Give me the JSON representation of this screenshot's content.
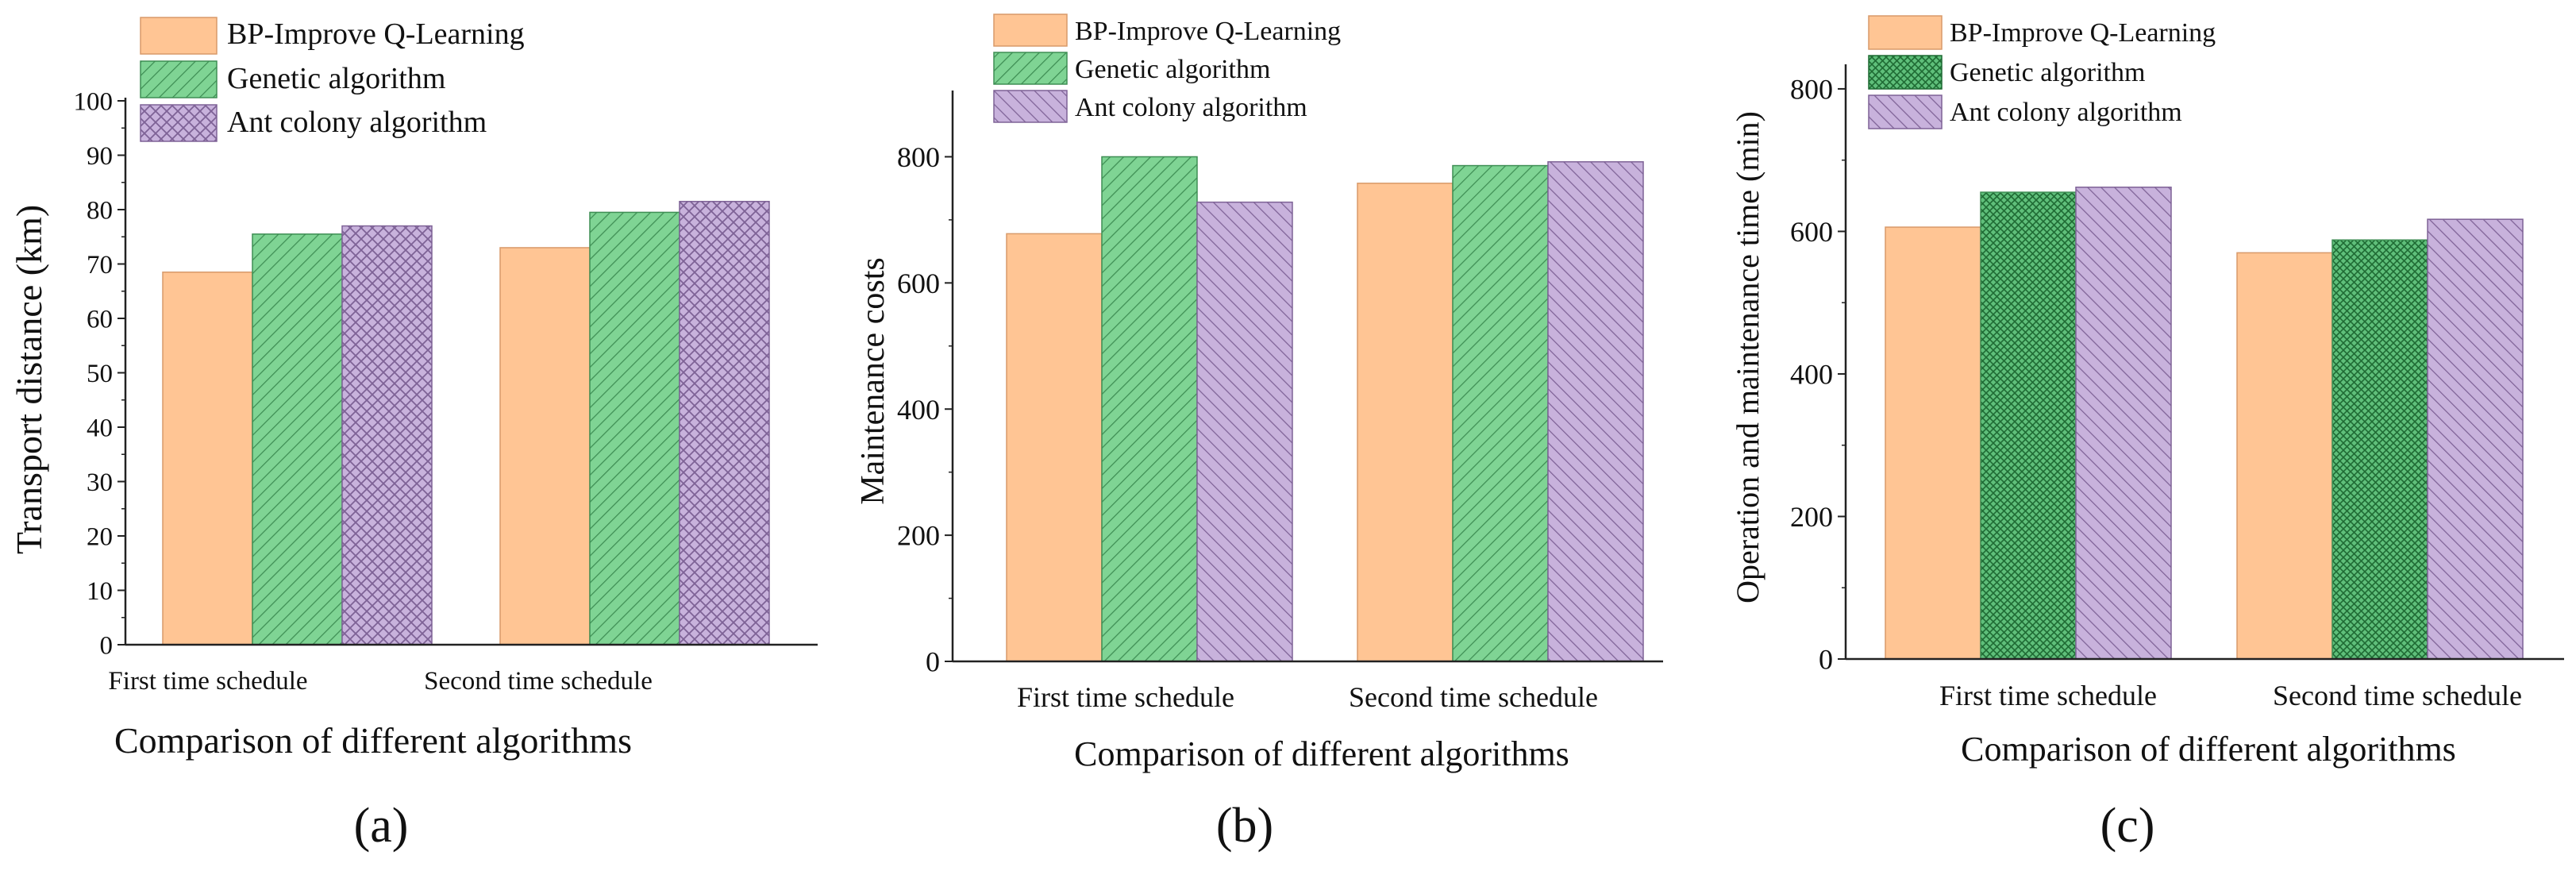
{
  "legend_labels": [
    "BP-Improve Q-Learning",
    "Genetic algorithm",
    "Ant colony algorithm"
  ],
  "colors": {
    "bp_fill": "#FFC594",
    "bp_stroke": "#D89A6A",
    "ga_fill": "#7FD494",
    "ga_hatch": "#3E8E54",
    "aca_fill": "#C8B2DC",
    "aca_hatch": "#7E6296",
    "axis": "#222222"
  },
  "chart_data": [
    {
      "type": "bar",
      "panel_label": "(a)",
      "title": "",
      "xlabel": "Comparison of different algorithms",
      "ylabel": "Transport distance (km)",
      "categories": [
        "First time schedule",
        "Second time schedule"
      ],
      "ylim": [
        0,
        100
      ],
      "yticks": [
        0,
        10,
        20,
        30,
        40,
        50,
        60,
        70,
        80,
        90,
        100
      ],
      "series": [
        {
          "name": "BP-Improve Q-Learning",
          "values": [
            68.5,
            73
          ]
        },
        {
          "name": "Genetic algorithm",
          "values": [
            75.5,
            79.5
          ]
        },
        {
          "name": "Ant colony algorithm",
          "values": [
            77,
            81.5
          ]
        }
      ],
      "legend": "top-left"
    },
    {
      "type": "bar",
      "panel_label": "(b)",
      "title": "",
      "xlabel": "Comparison of different algorithms",
      "ylabel": "Maintenance costs",
      "categories": [
        "First time schedule",
        "Second time schedule"
      ],
      "ylim": [
        0,
        900
      ],
      "yticks": [
        0,
        200,
        400,
        600,
        800
      ],
      "series": [
        {
          "name": "BP-Improve Q-Learning",
          "values": [
            678,
            758
          ]
        },
        {
          "name": "Genetic algorithm",
          "values": [
            800,
            786
          ]
        },
        {
          "name": "Ant colony algorithm",
          "values": [
            728,
            792
          ]
        }
      ],
      "legend": "top-left"
    },
    {
      "type": "bar",
      "panel_label": "(c)",
      "title": "",
      "xlabel": "Comparison of different algorithms",
      "ylabel": "Operation and maintenance time (min)",
      "categories": [
        "First time schedule",
        "Second time schedule"
      ],
      "ylim": [
        0,
        830
      ],
      "yticks": [
        0,
        200,
        400,
        600,
        800
      ],
      "series": [
        {
          "name": "BP-Improve Q-Learning",
          "values": [
            606,
            570
          ]
        },
        {
          "name": "Genetic algorithm",
          "values": [
            655,
            588
          ]
        },
        {
          "name": "Ant colony algorithm",
          "values": [
            662,
            617
          ]
        }
      ],
      "legend": "top-left"
    }
  ]
}
